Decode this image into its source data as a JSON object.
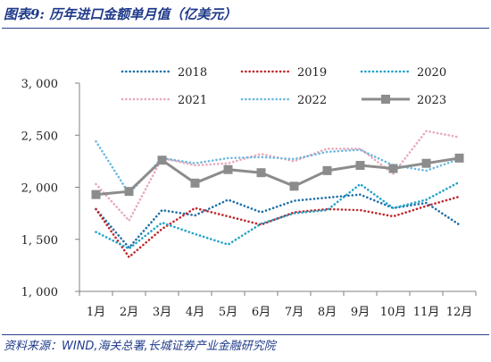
{
  "header": {
    "title": "图表9:  历年进口金额单月值（亿美元）"
  },
  "footer": {
    "source": "资料来源：WIND,海关总署,长城证券产业金融研究院"
  },
  "chart_data": {
    "type": "line",
    "title": "",
    "xlabel": "",
    "ylabel": "",
    "categories": [
      "1月",
      "2月",
      "3月",
      "4月",
      "5月",
      "6月",
      "7月",
      "8月",
      "9月",
      "10月",
      "11月",
      "12月"
    ],
    "ylim": [
      1000,
      3000
    ],
    "yticks": [
      1000,
      1500,
      2000,
      2500,
      3000
    ],
    "ytick_labels": [
      "1, 000",
      "1, 500",
      "2, 000",
      "2, 500",
      "3, 000"
    ],
    "legend_position": "top",
    "grid": false,
    "series": [
      {
        "name": "2018",
        "color": "#1f6fa8",
        "style": "dotted",
        "values": [
          1790,
          1420,
          1780,
          1730,
          1880,
          1760,
          1870,
          1900,
          1930,
          1800,
          1850,
          1640
        ]
      },
      {
        "name": "2019",
        "color": "#c0262c",
        "style": "dotted",
        "values": [
          1790,
          1330,
          1600,
          1800,
          1720,
          1640,
          1760,
          1790,
          1780,
          1720,
          1820,
          1910
        ]
      },
      {
        "name": "2020",
        "color": "#20a3c8",
        "style": "dotted",
        "values": [
          1570,
          1410,
          1660,
          1550,
          1450,
          1650,
          1750,
          1780,
          2030,
          1800,
          1880,
          2050
        ]
      },
      {
        "name": "2021",
        "color": "#e9a8b8",
        "style": "dotted",
        "values": [
          2030,
          1680,
          2280,
          2210,
          2230,
          2320,
          2250,
          2370,
          2370,
          2130,
          2540,
          2480
        ]
      },
      {
        "name": "2022",
        "color": "#6cb8e0",
        "style": "dotted",
        "values": [
          2440,
          1940,
          2280,
          2230,
          2280,
          2290,
          2270,
          2340,
          2360,
          2210,
          2160,
          2270
        ]
      },
      {
        "name": "2023",
        "color": "#8c8c8c",
        "style": "solid-square",
        "values": [
          1930,
          1960,
          2260,
          2040,
          2170,
          2140,
          2010,
          2160,
          2210,
          2180,
          2230,
          2280
        ]
      }
    ]
  }
}
